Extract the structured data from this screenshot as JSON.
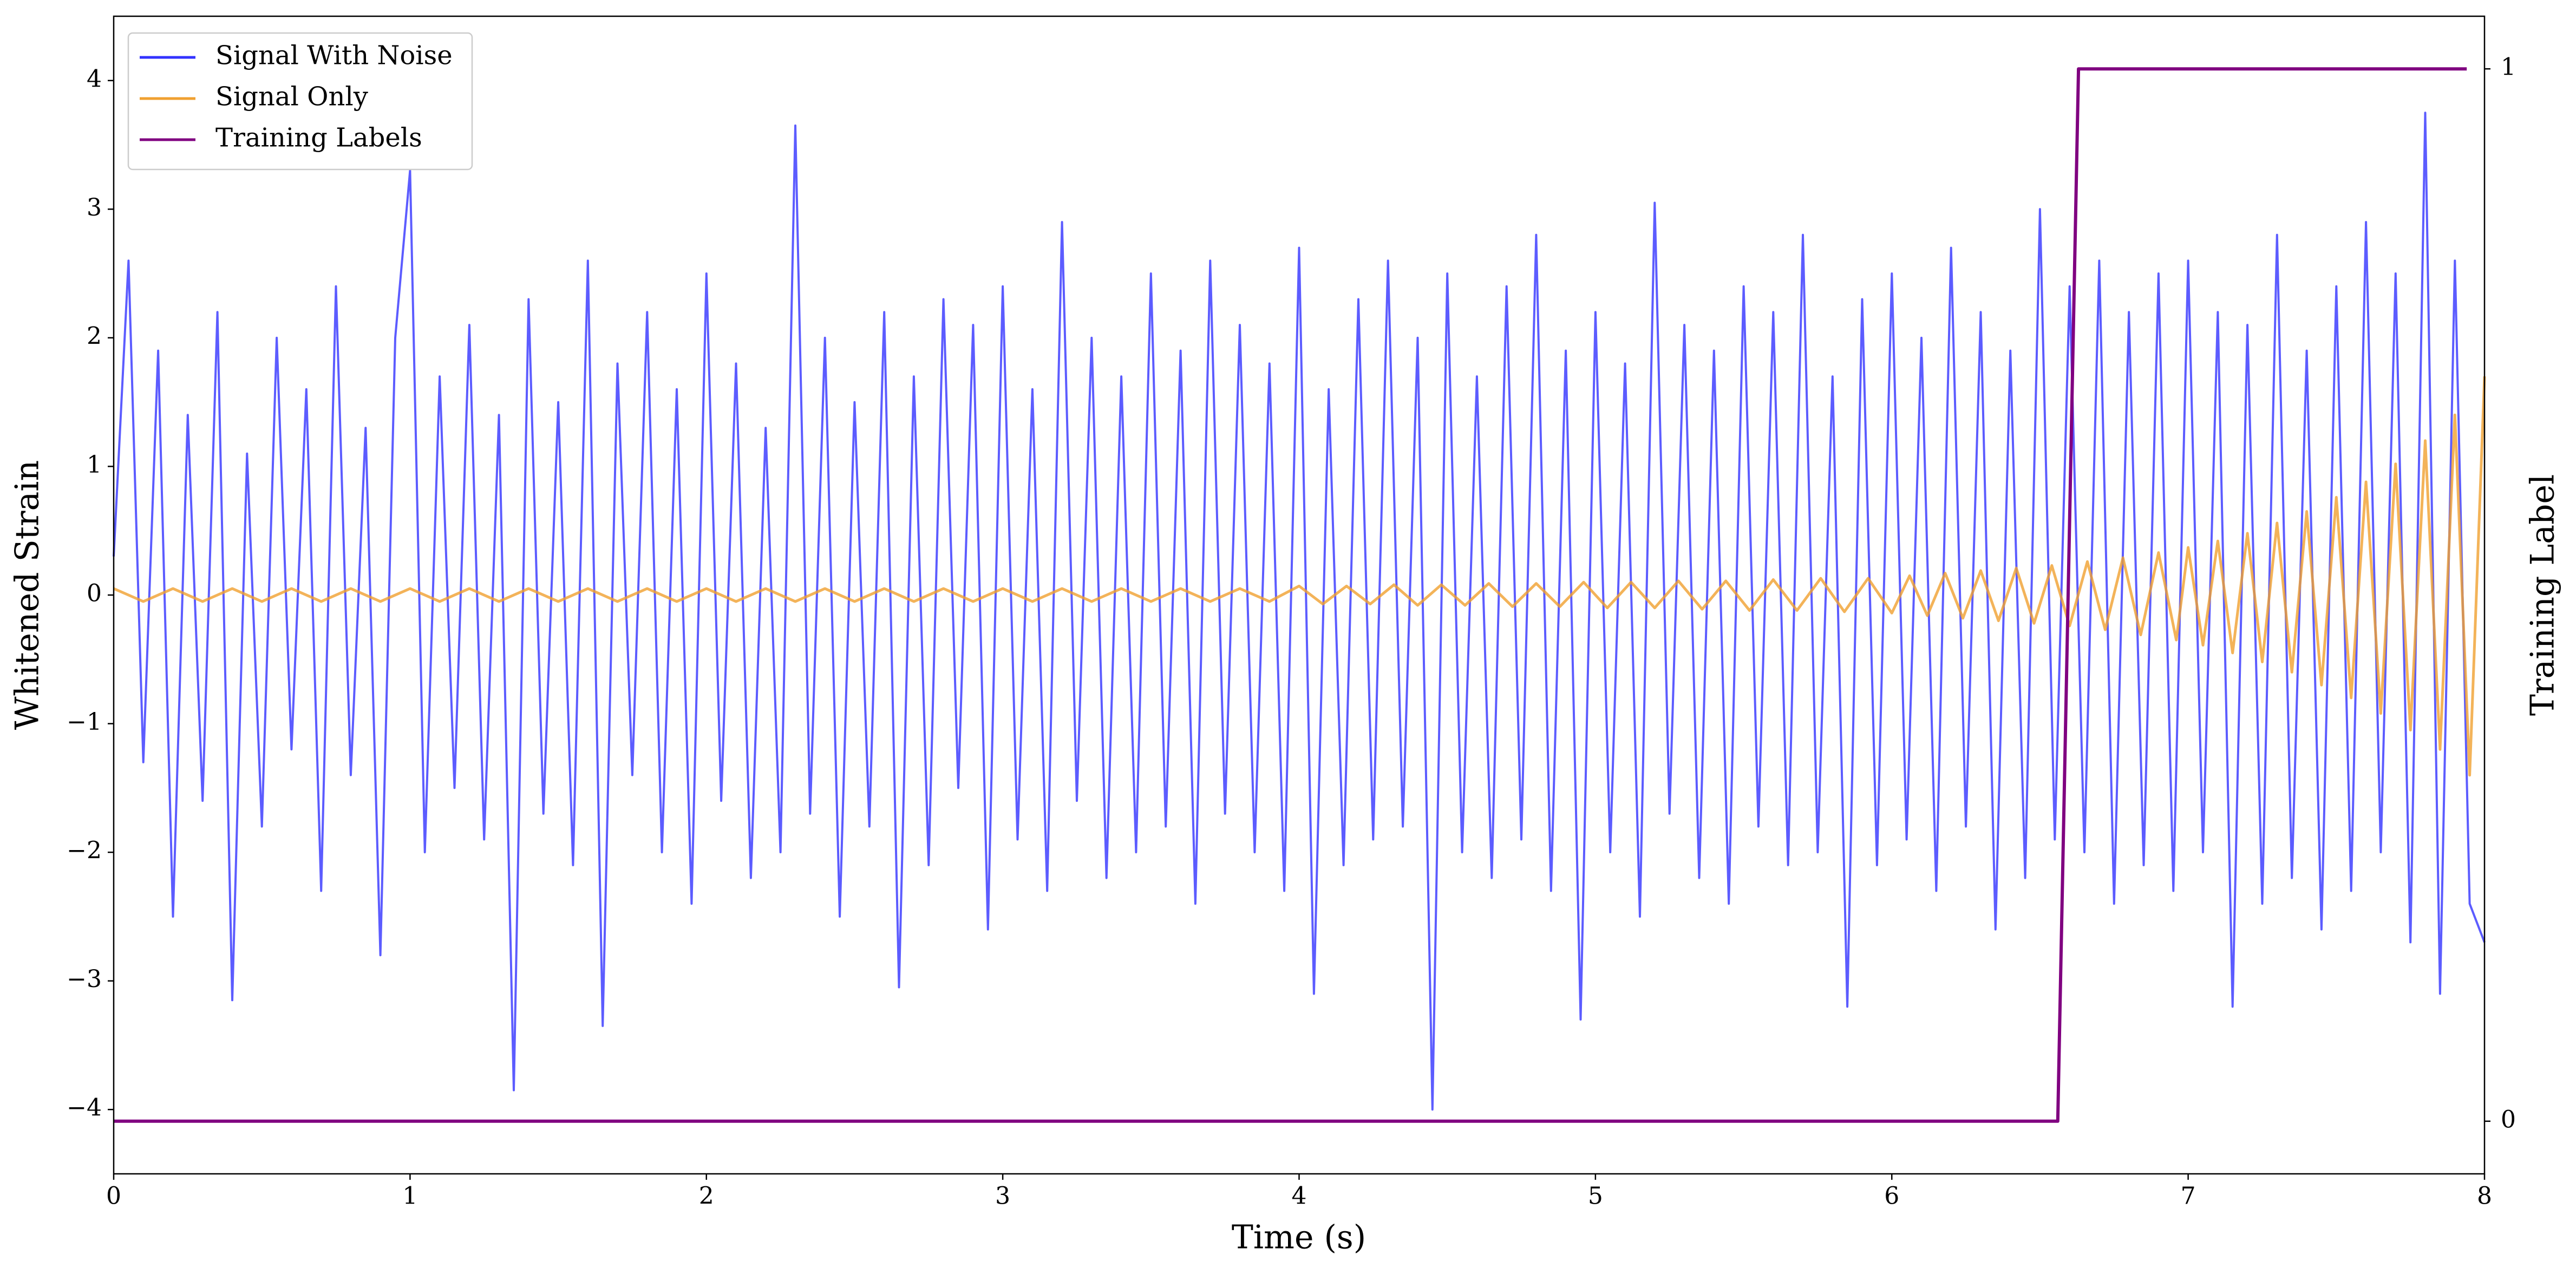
{
  "chart_data": {
    "type": "line",
    "xlabel": "Time (s)",
    "ylabel": "Whitened Strain",
    "y2label": "Training Label",
    "xlim": [
      0,
      8
    ],
    "ylim": [
      -4.5,
      4.5
    ],
    "y2lim": [
      -0.05,
      1.05
    ],
    "xticks": [
      0,
      1,
      2,
      3,
      4,
      5,
      6,
      7,
      8
    ],
    "yticks": [
      {
        "value": -4,
        "label": "−4"
      },
      {
        "value": -3,
        "label": "−3"
      },
      {
        "value": -2,
        "label": "−2"
      },
      {
        "value": -1,
        "label": "−1"
      },
      0,
      1,
      2,
      3,
      4
    ],
    "y2ticks": [
      0,
      1
    ],
    "legend": "upper left",
    "series": [
      {
        "name": "Signal With Noise",
        "color": "#3333ff",
        "x": [
          0,
          0.05,
          0.1,
          0.15,
          0.2,
          0.25,
          0.3,
          0.35,
          0.4,
          0.45,
          0.5,
          0.55,
          0.6,
          0.65,
          0.7,
          0.75,
          0.8,
          0.85,
          0.9,
          0.95,
          1,
          1.05,
          1.1,
          1.15,
          1.2,
          1.25,
          1.3,
          1.35,
          1.4,
          1.45,
          1.5,
          1.55,
          1.6,
          1.65,
          1.7,
          1.75,
          1.8,
          1.85,
          1.9,
          1.95,
          2,
          2.05,
          2.1,
          2.15,
          2.2,
          2.25,
          2.3,
          2.35,
          2.4,
          2.45,
          2.5,
          2.55,
          2.6,
          2.65,
          2.7,
          2.75,
          2.8,
          2.85,
          2.9,
          2.95,
          3,
          3.05,
          3.1,
          3.15,
          3.2,
          3.25,
          3.3,
          3.35,
          3.4,
          3.45,
          3.5,
          3.55,
          3.6,
          3.65,
          3.7,
          3.75,
          3.8,
          3.85,
          3.9,
          3.95,
          4,
          4.05,
          4.1,
          4.15,
          4.2,
          4.25,
          4.3,
          4.35,
          4.4,
          4.45,
          4.5,
          4.55,
          4.6,
          4.65,
          4.7,
          4.75,
          4.8,
          4.85,
          4.9,
          4.95,
          5,
          5.05,
          5.1,
          5.15,
          5.2,
          5.25,
          5.3,
          5.35,
          5.4,
          5.45,
          5.5,
          5.55,
          5.6,
          5.65,
          5.7,
          5.75,
          5.8,
          5.85,
          5.9,
          5.95,
          6,
          6.05,
          6.1,
          6.15,
          6.2,
          6.25,
          6.3,
          6.35,
          6.4,
          6.45,
          6.5,
          6.55,
          6.6,
          6.65,
          6.7,
          6.75,
          6.8,
          6.85,
          6.9,
          6.95,
          7,
          7.05,
          7.1,
          7.15,
          7.2,
          7.25,
          7.3,
          7.35,
          7.4,
          7.45,
          7.5,
          7.55,
          7.6,
          7.65,
          7.7,
          7.75,
          7.8,
          7.85,
          7.9,
          7.95,
          8
        ],
        "values": [
          0.3,
          2.6,
          -1.3,
          1.9,
          -2.5,
          1.4,
          -1.6,
          2.2,
          -3.15,
          1.1,
          -1.8,
          2.0,
          -1.2,
          1.6,
          -2.3,
          2.4,
          -1.4,
          1.3,
          -2.8,
          2.0,
          3.3,
          -2.0,
          1.7,
          -1.5,
          2.1,
          -1.9,
          1.4,
          -3.85,
          2.3,
          -1.7,
          1.5,
          -2.1,
          2.6,
          -3.35,
          1.8,
          -1.4,
          2.2,
          -2.0,
          1.6,
          -2.4,
          2.5,
          -1.6,
          1.8,
          -2.2,
          1.3,
          -2.0,
          3.65,
          -1.7,
          2.0,
          -2.5,
          1.5,
          -1.8,
          2.2,
          -3.05,
          1.7,
          -2.1,
          2.3,
          -1.5,
          2.1,
          -2.6,
          2.4,
          -1.9,
          1.6,
          -2.3,
          2.9,
          -1.6,
          2.0,
          -2.2,
          1.7,
          -2.0,
          2.5,
          -1.8,
          1.9,
          -2.4,
          2.6,
          -1.7,
          2.1,
          -2.0,
          1.8,
          -2.3,
          2.7,
          -3.1,
          1.6,
          -2.1,
          2.3,
          -1.9,
          2.6,
          -1.8,
          2.0,
          -4.0,
          2.5,
          -2.0,
          1.7,
          -2.2,
          2.4,
          -1.9,
          2.8,
          -2.3,
          1.9,
          -3.3,
          2.2,
          -2.0,
          1.8,
          -2.5,
          3.05,
          -1.7,
          2.1,
          -2.2,
          1.9,
          -2.4,
          2.4,
          -1.8,
          2.2,
          -2.1,
          2.8,
          -2.0,
          1.7,
          -3.2,
          2.3,
          -2.1,
          2.5,
          -1.9,
          2.0,
          -2.3,
          2.7,
          -1.8,
          2.2,
          -2.6,
          1.9,
          -2.2,
          3.0,
          -1.9,
          2.4,
          -2.0,
          2.6,
          -2.4,
          2.2,
          -2.1,
          2.5,
          -2.3,
          2.6,
          -2.0,
          2.2,
          -3.2,
          2.1,
          -2.4,
          2.8,
          -2.2,
          1.9,
          -2.6,
          2.4,
          -2.3,
          2.9,
          -2.0,
          2.5,
          -2.7,
          3.75,
          -3.1,
          2.6,
          -2.4,
          -2.7
        ]
      },
      {
        "name": "Signal Only",
        "color": "#f0a030",
        "x": [
          0,
          0.1,
          0.2,
          0.3,
          0.4,
          0.5,
          0.6,
          0.7,
          0.8,
          0.9,
          1,
          1.1,
          1.2,
          1.3,
          1.4,
          1.5,
          1.6,
          1.7,
          1.8,
          1.9,
          2,
          2.1,
          2.2,
          2.3,
          2.4,
          2.5,
          2.6,
          2.7,
          2.8,
          2.9,
          3,
          3.1,
          3.2,
          3.3,
          3.4,
          3.5,
          3.6,
          3.7,
          3.8,
          3.9,
          4,
          4.08,
          4.16,
          4.24,
          4.32,
          4.4,
          4.48,
          4.56,
          4.64,
          4.72,
          4.8,
          4.88,
          4.96,
          5.04,
          5.12,
          5.2,
          5.28,
          5.36,
          5.44,
          5.52,
          5.6,
          5.68,
          5.76,
          5.84,
          5.92,
          6,
          6.06,
          6.12,
          6.18,
          6.24,
          6.3,
          6.36,
          6.42,
          6.48,
          6.54,
          6.6,
          6.66,
          6.72,
          6.78,
          6.84,
          6.9,
          6.96,
          7,
          7.05,
          7.1,
          7.15,
          7.2,
          7.25,
          7.3,
          7.35,
          7.4,
          7.45,
          7.5,
          7.55,
          7.6,
          7.65,
          7.7,
          7.75,
          7.8,
          7.85,
          7.9,
          7.95,
          8
        ],
        "values": [
          0.05,
          -0.05,
          0.05,
          -0.05,
          0.05,
          -0.05,
          0.05,
          -0.05,
          0.05,
          -0.05,
          0.05,
          -0.05,
          0.05,
          -0.05,
          0.05,
          -0.05,
          0.05,
          -0.05,
          0.05,
          -0.05,
          0.05,
          -0.05,
          0.05,
          -0.05,
          0.05,
          -0.05,
          0.05,
          -0.05,
          0.05,
          -0.05,
          0.05,
          -0.05,
          0.05,
          -0.05,
          0.05,
          -0.05,
          0.05,
          -0.05,
          0.05,
          -0.05,
          0.07,
          -0.07,
          0.07,
          -0.07,
          0.08,
          -0.08,
          0.08,
          -0.08,
          0.09,
          -0.09,
          0.09,
          -0.09,
          0.1,
          -0.1,
          0.1,
          -0.1,
          0.11,
          -0.11,
          0.11,
          -0.12,
          0.12,
          -0.12,
          0.13,
          -0.13,
          0.13,
          -0.14,
          0.15,
          -0.16,
          0.17,
          -0.18,
          0.19,
          -0.2,
          0.21,
          -0.22,
          0.23,
          -0.24,
          0.26,
          -0.27,
          0.29,
          -0.31,
          0.33,
          -0.35,
          0.37,
          -0.39,
          0.42,
          -0.45,
          0.48,
          -0.52,
          0.56,
          -0.6,
          0.65,
          -0.7,
          0.76,
          -0.8,
          0.88,
          -0.92,
          1.02,
          -1.05,
          1.2,
          -1.2,
          1.4,
          -1.4,
          1.7
        ]
      },
      {
        "name": "Training Labels",
        "color": "#800080",
        "axis": "y2",
        "x": [
          0,
          6.56,
          6.63,
          7.94
        ],
        "values": [
          0,
          0,
          1,
          1
        ]
      }
    ]
  }
}
